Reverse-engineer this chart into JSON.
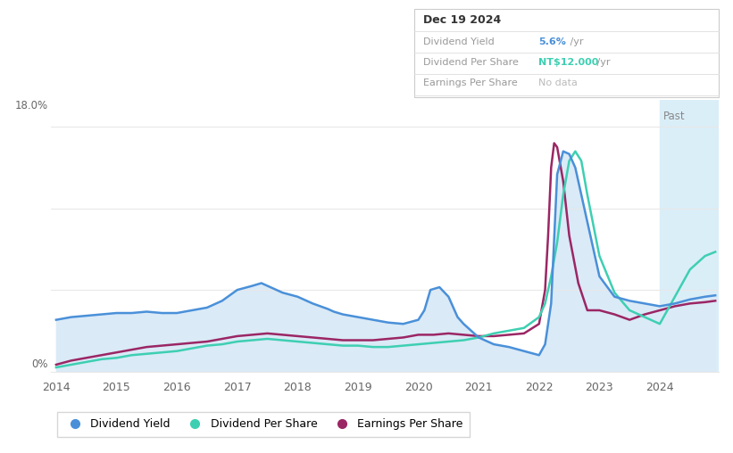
{
  "info_box": {
    "date": "Dec 19 2024",
    "dividend_yield_label": "Dividend Yield",
    "dividend_yield_value": "5.6%",
    "dividend_yield_unit": " /yr",
    "dividend_per_share_label": "Dividend Per Share",
    "dividend_per_share_value": "NT$12.000",
    "dividend_per_share_unit": " /yr",
    "earnings_per_share_label": "Earnings Per Share",
    "earnings_per_share_value": "No data"
  },
  "y_max_label": "18.0%",
  "y_min_label": "0%",
  "past_label": "Past",
  "background_color": "#ffffff",
  "plot_bg_color": "#ffffff",
  "fill_color": "#daeaf7",
  "past_bg_color": "#daeef8",
  "grid_color": "#e8e8e8",
  "dividend_yield": {
    "color": "#4a90d9",
    "label": "Dividend Yield",
    "x": [
      2014.0,
      2014.25,
      2014.5,
      2014.75,
      2015.0,
      2015.25,
      2015.5,
      2015.75,
      2016.0,
      2016.25,
      2016.5,
      2016.75,
      2017.0,
      2017.25,
      2017.4,
      2017.5,
      2017.75,
      2018.0,
      2018.25,
      2018.5,
      2018.6,
      2018.75,
      2019.0,
      2019.25,
      2019.5,
      2019.75,
      2020.0,
      2020.1,
      2020.2,
      2020.35,
      2020.5,
      2020.65,
      2020.75,
      2021.0,
      2021.25,
      2021.5,
      2021.75,
      2022.0,
      2022.1,
      2022.2,
      2022.3,
      2022.4,
      2022.5,
      2022.6,
      2022.7,
      2022.8,
      2023.0,
      2023.25,
      2023.5,
      2023.75,
      2024.0,
      2024.25,
      2024.5,
      2024.75,
      2024.92
    ],
    "y": [
      3.8,
      4.0,
      4.1,
      4.2,
      4.3,
      4.3,
      4.4,
      4.3,
      4.3,
      4.5,
      4.7,
      5.2,
      6.0,
      6.3,
      6.5,
      6.3,
      5.8,
      5.5,
      5.0,
      4.6,
      4.4,
      4.2,
      4.0,
      3.8,
      3.6,
      3.5,
      3.8,
      4.5,
      6.0,
      6.2,
      5.5,
      4.0,
      3.5,
      2.5,
      2.0,
      1.8,
      1.5,
      1.2,
      2.0,
      5.0,
      14.5,
      16.2,
      16.0,
      15.0,
      13.0,
      11.0,
      7.0,
      5.5,
      5.2,
      5.0,
      4.8,
      5.0,
      5.3,
      5.5,
      5.6
    ]
  },
  "dividend_per_share": {
    "color": "#3ecfb2",
    "label": "Dividend Per Share",
    "x": [
      2014.0,
      2014.25,
      2014.5,
      2014.75,
      2015.0,
      2015.25,
      2015.5,
      2015.75,
      2016.0,
      2016.25,
      2016.5,
      2016.75,
      2017.0,
      2017.25,
      2017.5,
      2017.75,
      2018.0,
      2018.25,
      2018.5,
      2018.75,
      2019.0,
      2019.25,
      2019.5,
      2019.75,
      2020.0,
      2020.25,
      2020.5,
      2020.75,
      2021.0,
      2021.25,
      2021.5,
      2021.75,
      2022.0,
      2022.1,
      2022.2,
      2022.3,
      2022.4,
      2022.5,
      2022.6,
      2022.7,
      2022.8,
      2023.0,
      2023.25,
      2023.5,
      2023.75,
      2024.0,
      2024.25,
      2024.5,
      2024.75,
      2024.92
    ],
    "y": [
      0.3,
      0.5,
      0.7,
      0.9,
      1.0,
      1.2,
      1.3,
      1.4,
      1.5,
      1.7,
      1.9,
      2.0,
      2.2,
      2.3,
      2.4,
      2.3,
      2.2,
      2.1,
      2.0,
      1.9,
      1.9,
      1.8,
      1.8,
      1.9,
      2.0,
      2.1,
      2.2,
      2.3,
      2.5,
      2.8,
      3.0,
      3.2,
      4.0,
      5.0,
      7.0,
      9.5,
      13.0,
      15.5,
      16.2,
      15.5,
      13.0,
      8.5,
      5.8,
      4.5,
      4.0,
      3.5,
      5.5,
      7.5,
      8.5,
      8.8
    ]
  },
  "earnings_per_share": {
    "color": "#9b2665",
    "label": "Earnings Per Share",
    "x": [
      2014.0,
      2014.25,
      2014.5,
      2014.75,
      2015.0,
      2015.25,
      2015.5,
      2015.75,
      2016.0,
      2016.25,
      2016.5,
      2016.75,
      2017.0,
      2017.25,
      2017.5,
      2017.75,
      2018.0,
      2018.25,
      2018.5,
      2018.75,
      2019.0,
      2019.25,
      2019.5,
      2019.75,
      2020.0,
      2020.25,
      2020.5,
      2020.75,
      2021.0,
      2021.25,
      2021.5,
      2021.75,
      2022.0,
      2022.1,
      2022.15,
      2022.2,
      2022.25,
      2022.3,
      2022.4,
      2022.5,
      2022.65,
      2022.8,
      2023.0,
      2023.25,
      2023.5,
      2023.75,
      2024.0,
      2024.25,
      2024.5,
      2024.75,
      2024.92
    ],
    "y": [
      0.5,
      0.8,
      1.0,
      1.2,
      1.4,
      1.6,
      1.8,
      1.9,
      2.0,
      2.1,
      2.2,
      2.4,
      2.6,
      2.7,
      2.8,
      2.7,
      2.6,
      2.5,
      2.4,
      2.3,
      2.3,
      2.3,
      2.4,
      2.5,
      2.7,
      2.7,
      2.8,
      2.7,
      2.6,
      2.6,
      2.7,
      2.8,
      3.5,
      6.0,
      10.0,
      15.0,
      16.8,
      16.5,
      14.0,
      10.0,
      6.5,
      4.5,
      4.5,
      4.2,
      3.8,
      4.2,
      4.5,
      4.8,
      5.0,
      5.1,
      5.2
    ]
  },
  "ylim": [
    0,
    20
  ],
  "xlim": [
    2013.92,
    2024.97
  ],
  "xtick_years": [
    2014,
    2015,
    2016,
    2017,
    2018,
    2019,
    2020,
    2021,
    2022,
    2023,
    2024
  ],
  "past_start": 2024.0
}
